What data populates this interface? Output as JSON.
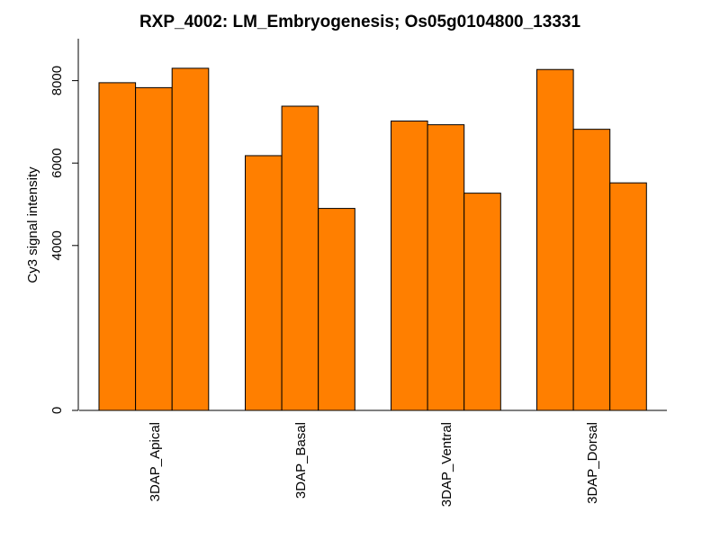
{
  "chart_data": {
    "type": "bar",
    "title": "RXP_4002: LM_Embryogenesis; Os05g0104800_13331",
    "ylabel": "Cy3 signal intensity",
    "xlabel": "",
    "ylim": [
      0,
      9000
    ],
    "yticks": [
      0,
      4000,
      6000,
      8000
    ],
    "ytick_labels": [
      "0",
      "4000",
      "6000",
      "8000"
    ],
    "categories": [
      "3DAP_Apical",
      "3DAP_Basal",
      "3DAP_Ventral",
      "3DAP_Dorsal"
    ],
    "values": [
      [
        7950,
        7830,
        8300
      ],
      [
        6180,
        7380,
        4900
      ],
      [
        7020,
        6930,
        5270
      ],
      [
        8270,
        6820,
        5520
      ]
    ],
    "bar_color": "#FF7F00",
    "grid": false,
    "legend": "none"
  }
}
